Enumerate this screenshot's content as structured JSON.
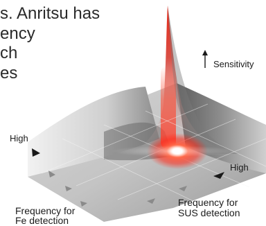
{
  "intro_text_lines": [
    "s. Anritsu has",
    "ency",
    "ch",
    "es"
  ],
  "axis_labels": {
    "sensitivity": "Sensitivity",
    "high_left": "High",
    "high_right": "High",
    "frequency_sus": [
      "Frequency for",
      "SUS detection"
    ],
    "frequency_fe": [
      "Frequency for",
      "Fe detection"
    ]
  },
  "colors": {
    "peak": "#e8281c",
    "glow": "#ff3b2a",
    "surface_light": "#eeeeee",
    "surface_dark": "#6e6e6e",
    "text": "#2a2a2a"
  },
  "icons": [
    "up-arrow-icon",
    "triangle-marker-icon"
  ]
}
